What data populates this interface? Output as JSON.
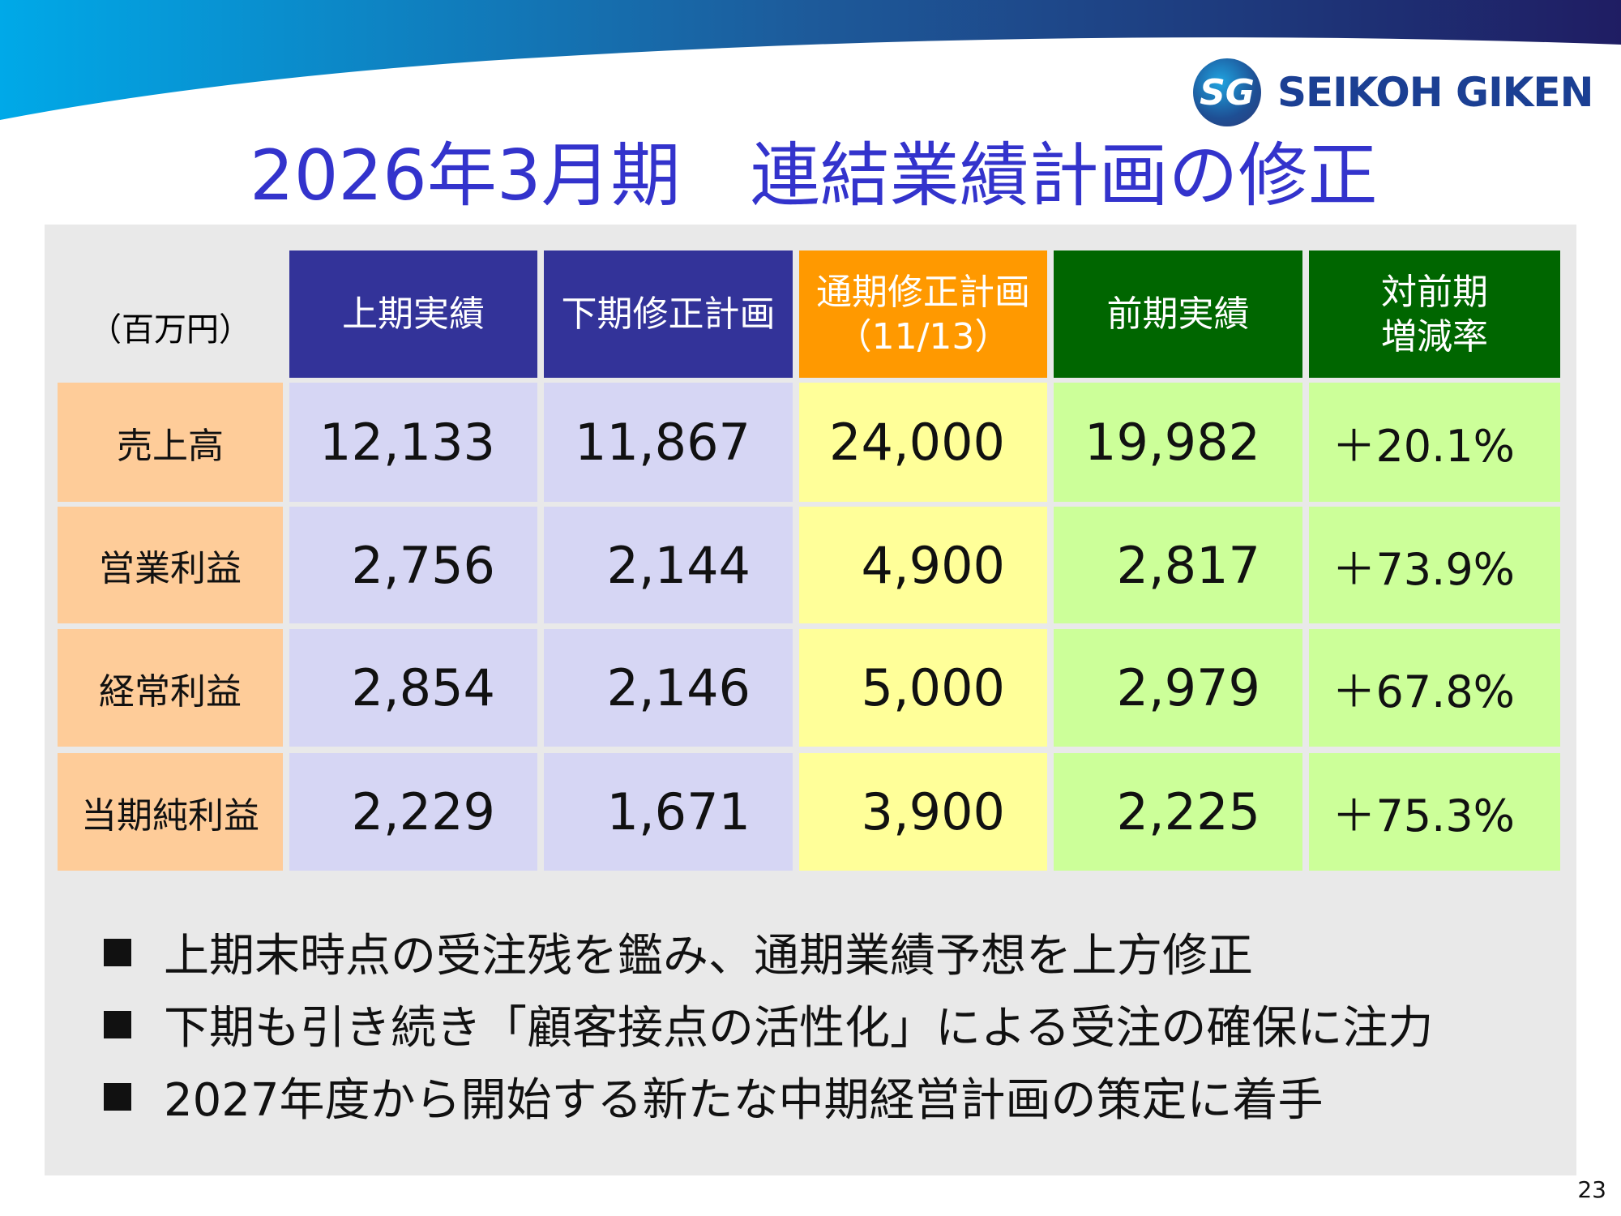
{
  "title": "2026年3月期　連結業績計画の修正",
  "logo": {
    "mark": "SG",
    "text": "SEIKOH GIKEN"
  },
  "table": {
    "unit": "（百万円）",
    "headers": [
      "上期実績",
      "下期修正計画",
      "通期修正計画\n（11/13）",
      "前期実績",
      "対前期\n増減率"
    ],
    "header_colors": [
      "#333399",
      "#333399",
      "#ff9900",
      "#006600",
      "#006600"
    ],
    "rows": [
      {
        "label": "売上高",
        "values": [
          "12,133",
          "11,867",
          "24,000",
          "19,982",
          "＋20.1%"
        ]
      },
      {
        "label": "営業利益",
        "values": [
          "2,756",
          "2,144",
          "4,900",
          "2,817",
          "＋73.9%"
        ]
      },
      {
        "label": "経常利益",
        "values": [
          "2,854",
          "2,146",
          "5,000",
          "2,979",
          "＋67.8%"
        ]
      },
      {
        "label": "当期純利益",
        "values": [
          "2,229",
          "1,671",
          "3,900",
          "2,225",
          "＋75.3%"
        ]
      }
    ]
  },
  "bullets": [
    "上期末時点の受注残を鑑み、通期業績予想を上方修正",
    "下期も引き続き「顧客接点の活性化」による受注の確保に注力",
    "2027年度から開始する新たな中期経営計画の策定に着手"
  ],
  "page_number": "23"
}
